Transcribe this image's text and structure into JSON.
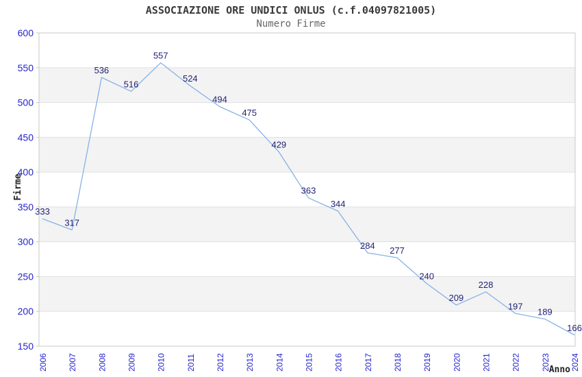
{
  "header": {
    "title": "ASSOCIAZIONE ORE UNDICI ONLUS (c.f.04097821005)",
    "subtitle": "Numero Firme"
  },
  "chart_data": {
    "type": "line",
    "title": "ASSOCIAZIONE ORE UNDICI ONLUS (c.f.04097821005)",
    "subtitle": "Numero Firme",
    "x": [
      2006,
      2007,
      2008,
      2009,
      2010,
      2011,
      2012,
      2013,
      2014,
      2015,
      2016,
      2017,
      2018,
      2019,
      2020,
      2021,
      2022,
      2023,
      2024
    ],
    "values": [
      333,
      317,
      536,
      516,
      557,
      524,
      494,
      475,
      429,
      363,
      344,
      284,
      277,
      240,
      209,
      228,
      197,
      189,
      166
    ],
    "xlabel": "Anno",
    "ylabel": "Firme",
    "ylim": [
      150,
      600
    ],
    "ytick_step": 50,
    "grid": "horizontal-only",
    "legend": "none",
    "banding": "alternating-horizontal"
  },
  "colors": {
    "background": "#ffffff",
    "band": "#f3f3f3",
    "grid": "#e0e0e0",
    "border": "#c9c9c9",
    "line": "#85b2e5",
    "value_label": "#222277",
    "axis_text": "#2424cc",
    "axis_title": "#222222",
    "title_text": "#3a3a3a",
    "subtitle_text": "#666666"
  }
}
